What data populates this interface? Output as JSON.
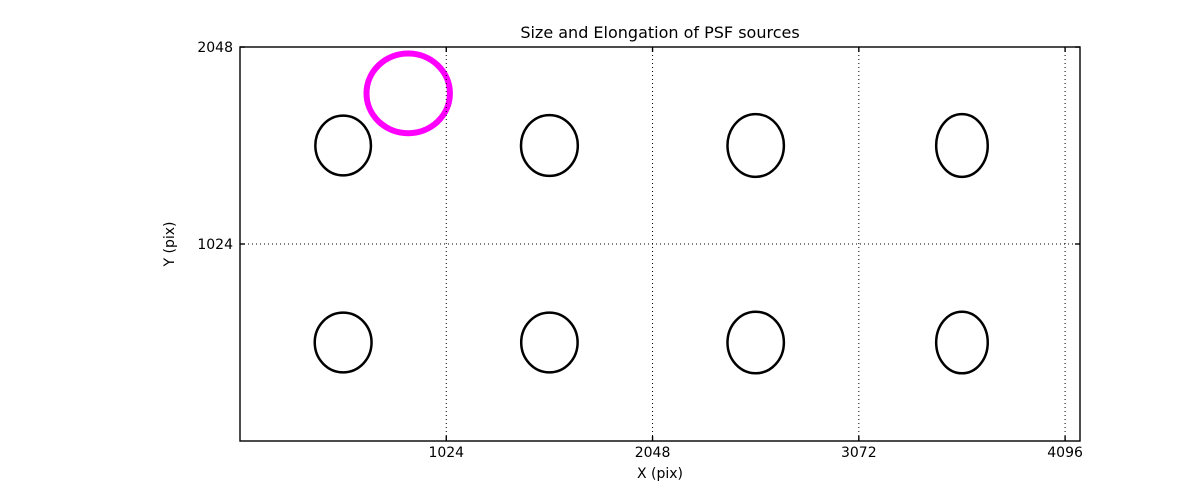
{
  "chart_data": {
    "type": "scatter",
    "title": "Size and Elongation of PSF sources",
    "xlabel": "X (pix)",
    "ylabel": "Y (pix)",
    "xlim": [
      0,
      4170
    ],
    "ylim": [
      0,
      2048
    ],
    "xticks": [
      1024,
      2048,
      3072,
      4096
    ],
    "yticks": [
      1024,
      2048
    ],
    "grid": {
      "visible": true,
      "style": "dotted",
      "color": "#000000"
    },
    "legend_position": "none",
    "marker_style": "open-ellipse",
    "ellipse_color": "#000000",
    "ellipse_linewidth": 2.5,
    "ellipses": [
      {
        "x": 512,
        "y": 1536,
        "a": 138,
        "b": 155
      },
      {
        "x": 1536,
        "y": 1536,
        "a": 141,
        "b": 158
      },
      {
        "x": 2560,
        "y": 1536,
        "a": 140,
        "b": 163
      },
      {
        "x": 3584,
        "y": 1536,
        "a": 128,
        "b": 163
      },
      {
        "x": 512,
        "y": 512,
        "a": 141,
        "b": 155
      },
      {
        "x": 1536,
        "y": 512,
        "a": 140,
        "b": 155
      },
      {
        "x": 2560,
        "y": 512,
        "a": 140,
        "b": 160
      },
      {
        "x": 3584,
        "y": 512,
        "a": 128,
        "b": 160
      }
    ],
    "reference_circle": {
      "x": 835,
      "y": 1807,
      "r": 207,
      "color": "#FF00FF",
      "linewidth": 6
    }
  }
}
